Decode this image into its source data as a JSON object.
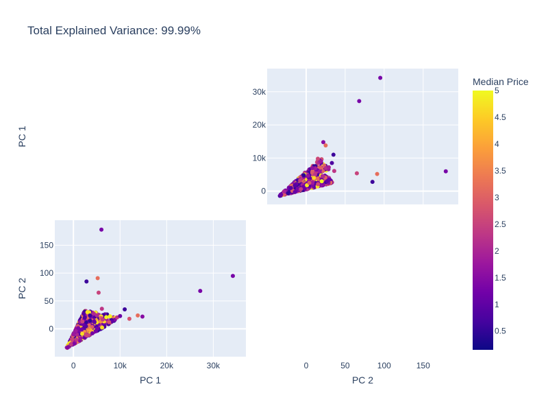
{
  "title": "Total Explained Variance: 99.99%",
  "colorbar": {
    "title": "Median Price",
    "ticks": [
      "0.5",
      "1",
      "1.5",
      "2",
      "2.5",
      "3",
      "3.5",
      "4",
      "4.5",
      "5"
    ],
    "range": [
      0.15,
      5.0
    ],
    "colors": [
      "#0d0887",
      "#46039f",
      "#7201a8",
      "#9c179e",
      "#bd3786",
      "#d8576b",
      "#ed7953",
      "#fb9f3a",
      "#fdca26",
      "#f0f921"
    ]
  },
  "chart_data": [
    {
      "type": "scatter",
      "panel": "top-right",
      "xlabel": "",
      "ylabel": "PC 1",
      "x_field": "PC 2",
      "y_field": "PC 1",
      "xlim": [
        -50,
        195
      ],
      "ylim": [
        -4000,
        37000
      ],
      "y_ticks": [
        {
          "value": 0,
          "label": "0"
        },
        {
          "value": 10000,
          "label": "10k"
        },
        {
          "value": 20000,
          "label": "20k"
        },
        {
          "value": 30000,
          "label": "30k"
        }
      ],
      "x_ticks": [],
      "gridlines_x": [
        0,
        50,
        100,
        150
      ],
      "points": [
        {
          "x": 95,
          "y": 34200,
          "c": 1.3
        },
        {
          "x": 68,
          "y": 27200,
          "c": 1.3
        },
        {
          "x": 179,
          "y": 6000,
          "c": 1.3
        },
        {
          "x": 65,
          "y": 5400,
          "c": 2.5
        },
        {
          "x": 91,
          "y": 5200,
          "c": 3.2
        },
        {
          "x": 85,
          "y": 2800,
          "c": 0.6
        },
        {
          "x": 35,
          "y": 11000,
          "c": 0.6
        },
        {
          "x": 22,
          "y": 14800,
          "c": 1.5
        },
        {
          "x": 25,
          "y": 13800,
          "c": 3.2
        },
        {
          "x": 33,
          "y": 8500,
          "c": 0.8
        },
        {
          "x": 29,
          "y": 7200,
          "c": 1.9
        },
        {
          "x": 36,
          "y": 6100,
          "c": 2.3
        },
        {
          "x": 30,
          "y": 3500,
          "c": 1.1
        },
        {
          "x": 15,
          "y": 9800,
          "c": 2.6
        },
        {
          "x": 10,
          "y": 4000,
          "c": 4.6
        },
        {
          "x": 1,
          "y": 1800,
          "c": 4.8
        },
        {
          "x": 4,
          "y": 2500,
          "c": 2.8
        },
        {
          "x": 20,
          "y": 3000,
          "c": 5.0
        }
      ],
      "cloud": {
        "apex": [
          24,
          11000
        ],
        "base_left": [
          -35,
          -1500
        ],
        "base_right": [
          34,
          2500
        ],
        "count": 900
      }
    },
    {
      "type": "scatter",
      "panel": "bottom-left",
      "xlabel": "PC 1",
      "ylabel": "PC 2",
      "x_field": "PC 1",
      "y_field": "PC 2",
      "xlim": [
        -4000,
        37000
      ],
      "ylim": [
        -50,
        195
      ],
      "x_ticks": [
        {
          "value": 0,
          "label": "0"
        },
        {
          "value": 10000,
          "label": "10k"
        },
        {
          "value": 20000,
          "label": "20k"
        },
        {
          "value": 30000,
          "label": "30k"
        }
      ],
      "y_ticks": [
        {
          "value": 0,
          "label": "0"
        },
        {
          "value": 50,
          "label": "50"
        },
        {
          "value": 100,
          "label": "100"
        },
        {
          "value": 150,
          "label": "150"
        }
      ],
      "points": [
        {
          "x": 6000,
          "y": 178,
          "c": 1.3
        },
        {
          "x": 34200,
          "y": 95,
          "c": 1.3
        },
        {
          "x": 27200,
          "y": 68,
          "c": 1.3
        },
        {
          "x": 5200,
          "y": 91,
          "c": 3.2
        },
        {
          "x": 2800,
          "y": 85,
          "c": 0.6
        },
        {
          "x": 5400,
          "y": 65,
          "c": 2.5
        },
        {
          "x": 11000,
          "y": 35,
          "c": 0.6
        },
        {
          "x": 14800,
          "y": 22,
          "c": 1.5
        },
        {
          "x": 13800,
          "y": 24,
          "c": 3.2
        },
        {
          "x": 6100,
          "y": 36,
          "c": 2.3
        },
        {
          "x": 3000,
          "y": 30,
          "c": 4.8
        },
        {
          "x": 10000,
          "y": 23,
          "c": 1.1
        },
        {
          "x": 12000,
          "y": 18,
          "c": 2.8
        }
      ],
      "cloud": {
        "apex": [
          11000,
          24
        ],
        "base_left": [
          -1500,
          -35
        ],
        "base_right": [
          2500,
          34
        ],
        "count": 900
      }
    },
    {
      "type": "empty",
      "panel": "bottom-right",
      "xlabel": "PC 2",
      "xlim": [
        -50,
        195
      ],
      "x_ticks": [
        {
          "value": 0,
          "label": "0"
        },
        {
          "value": 50,
          "label": "50"
        },
        {
          "value": 100,
          "label": "100"
        },
        {
          "value": 150,
          "label": "150"
        }
      ]
    }
  ]
}
